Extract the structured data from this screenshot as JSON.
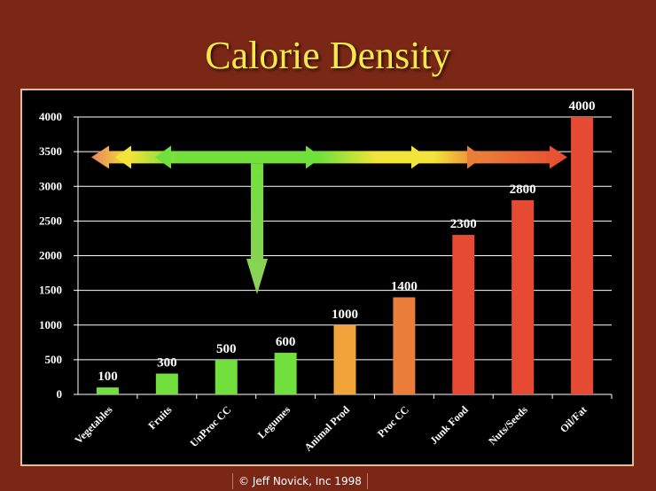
{
  "slide": {
    "title": "Calorie Density",
    "footer": "© Jeff Novick, Inc 1998"
  },
  "colors": {
    "background": "#7a2716",
    "title": "#f3e94a",
    "green": "#72e03c",
    "light_orange": "#f2a43a",
    "orange": "#ea7d3a",
    "red": "#e64a32",
    "yellow": "#f2e43a"
  },
  "chart_data": {
    "type": "bar",
    "categories": [
      "Vegetables",
      "Fruits",
      "UnProc CC",
      "Legumes",
      "Animal Prod",
      "Proc CC",
      "Junk Food",
      "Nuts/Seeds",
      "Oil/Fat"
    ],
    "values": [
      100,
      300,
      500,
      600,
      1000,
      1400,
      2300,
      2800,
      4000
    ],
    "bar_colors": [
      "#72e03c",
      "#72e03c",
      "#72e03c",
      "#72e03c",
      "#f2a43a",
      "#ea7d3a",
      "#e64a32",
      "#e64a32",
      "#e64a32"
    ],
    "ylim": [
      0,
      4000
    ],
    "yticks": [
      0,
      500,
      1000,
      1500,
      2000,
      2500,
      3000,
      3500,
      4000
    ],
    "grid": true,
    "data_labels": true,
    "annotations": [
      {
        "type": "double-arrow",
        "description": "horizontal gradient arrow green to yellow to red at y≈3420"
      },
      {
        "type": "arrow-down",
        "description": "green arrow pointing down from the horizontal arrow"
      }
    ]
  }
}
